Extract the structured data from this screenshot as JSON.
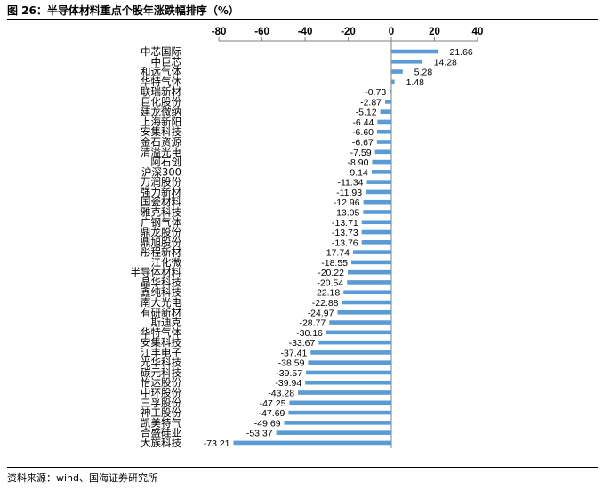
{
  "header": {
    "figure_label": "图 26：半导体材料重点个股年涨跌幅排序（%）"
  },
  "source": {
    "text": "资料来源：wind、国海证券研究所"
  },
  "colors": {
    "bar": "#5b9bd5",
    "axis": "#7f7f7f"
  },
  "chart_data": {
    "type": "bar",
    "orientation": "horizontal",
    "title": "",
    "xlabel": "",
    "ylabel": "",
    "xlim": [
      -80,
      40
    ],
    "x_ticks": [
      -80,
      -60,
      -40,
      -20,
      0,
      20,
      40
    ],
    "x_tick_labels": [
      "-80",
      "-60",
      "-40",
      "-20",
      "0",
      "20",
      "40"
    ],
    "axis_position": "top",
    "grid": false,
    "legend": "none",
    "categories": [
      "中芯国际",
      "中巨芯",
      "和远气体",
      "华特气体",
      "联瑞新材",
      "巨化股份",
      "建龙微纳",
      "上海新阳",
      "安集科技",
      "金石资源",
      "清溢光电",
      "阿石创",
      "沪深300",
      "万润股份",
      "强力新材",
      "国瓷材料",
      "雅克科技",
      "广钢气体",
      "鼎龙股份",
      "鼎旭股份",
      "彤程新材",
      "江化微",
      "半导体材料",
      "晶华科技",
      "鑫纯科技",
      "南大光电",
      "有研新材",
      "斯迪克",
      "华特气体",
      "安集科技",
      "江丰电子",
      "光华科技",
      "碳元科技",
      "怡达股份",
      "中环股份",
      "三孚股份",
      "神工股份",
      "凯美特气",
      "合盛硅业",
      "大族科技"
    ],
    "values": [
      21.66,
      14.28,
      5.28,
      1.48,
      -0.73,
      -2.87,
      -5.12,
      -6.44,
      -6.6,
      -6.67,
      -7.59,
      -8.9,
      -9.14,
      -11.34,
      -11.93,
      -12.96,
      -13.05,
      -13.71,
      -13.73,
      -13.76,
      -17.74,
      -18.55,
      -20.22,
      -20.54,
      -22.18,
      -22.88,
      -24.97,
      -28.77,
      -30.16,
      -33.67,
      -37.41,
      -38.59,
      -39.57,
      -39.94,
      -43.28,
      -47.25,
      -47.69,
      -49.69,
      -53.37,
      -73.21
    ],
    "value_labels": [
      "21.66",
      "14.28",
      "5.28",
      "1.48",
      "-0.73",
      "-2.87",
      "-5.12",
      "-6.44",
      "-6.60",
      "-6.67",
      "-7.59",
      "-8.90",
      "-9.14",
      "-11.34",
      "-11.93",
      "-12.96",
      "-13.05",
      "-13.71",
      "-13.73",
      "-13.76",
      "-17.74",
      "-18.55",
      "-20.22",
      "-20.54",
      "-22.18",
      "-22.88",
      "-24.97",
      "-28.77",
      "-30.16",
      "-33.67",
      "-37.41",
      "-38.59",
      "-39.57",
      "-39.94",
      "-43.28",
      "-47.25",
      "-47.69",
      "-49.69",
      "-53.37",
      "-73.21"
    ]
  }
}
